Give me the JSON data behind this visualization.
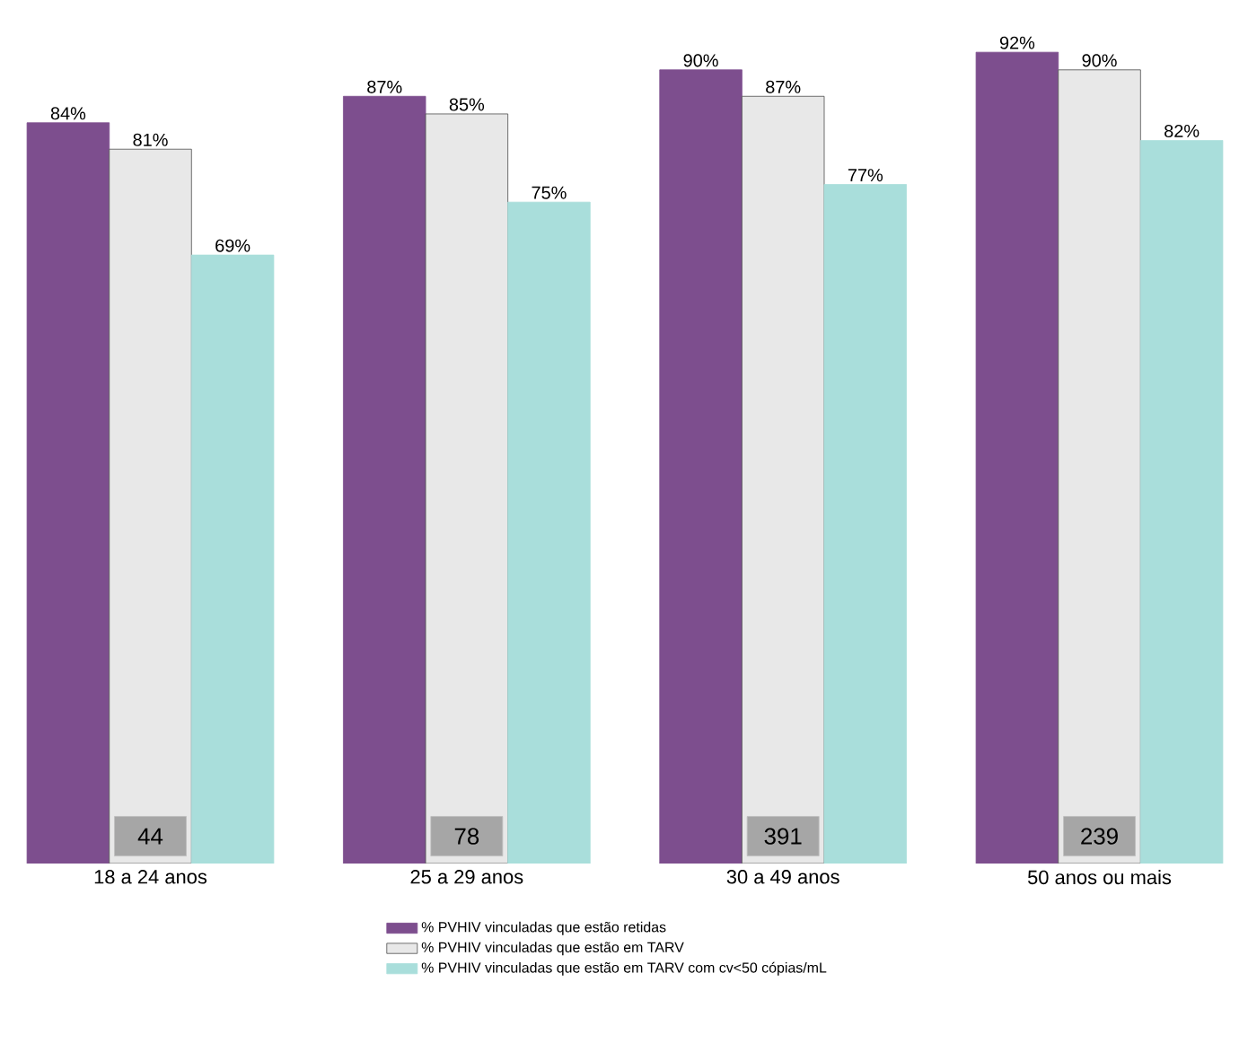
{
  "chart_data": {
    "type": "bar",
    "categories": [
      "18 a 24 anos",
      "25 a 29 anos",
      "30 a 49 anos",
      "50 anos ou mais"
    ],
    "series": [
      {
        "name": "% PVHIV vinculadas que estão retidas",
        "color": "#7d4e8e",
        "values": [
          84,
          87,
          90,
          92
        ],
        "value_labels": [
          "84%",
          "87%",
          "90%",
          "92%"
        ]
      },
      {
        "name": "% PVHIV vinculadas que estão em TARV",
        "color": "#e8e8e8",
        "values": [
          81,
          85,
          87,
          90
        ],
        "value_labels": [
          "81%",
          "85%",
          "87%",
          "90%"
        ]
      },
      {
        "name": "% PVHIV vinculadas que estão em TARV com cv<50 cópias/mL",
        "color": "#a9dedb",
        "values": [
          69,
          75,
          77,
          82
        ],
        "value_labels": [
          "69%",
          "75%",
          "77%",
          "82%"
        ]
      }
    ],
    "annotations": [
      {
        "text": "44",
        "x": "18 a 24 anos"
      },
      {
        "text": "78",
        "x": "25 a 29 anos"
      },
      {
        "text": "391",
        "x": "30 a 49 anos"
      },
      {
        "text": "239",
        "x": "50 anos ou mais"
      }
    ],
    "legend": "bottom"
  }
}
